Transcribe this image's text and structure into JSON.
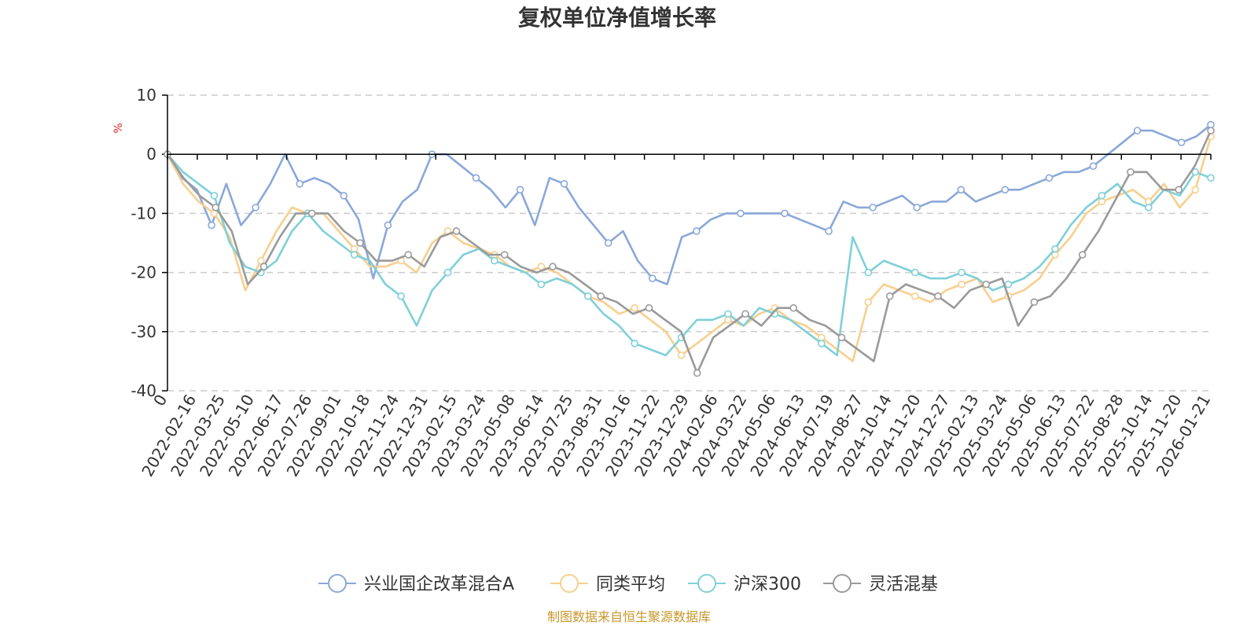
{
  "chart_data": {
    "type": "line",
    "title": "复权单位净值增长率",
    "ylabel": "%",
    "xlabel": "",
    "ylim": [
      -40,
      10
    ],
    "yticks": [
      10,
      0,
      -10,
      -20,
      -30,
      -40
    ],
    "grid": true,
    "legend_position": "bottom-center",
    "source_note": "制图数据来自恒生聚源数据库",
    "x_tick_labels": [
      "0",
      "2022-02-16",
      "2022-03-25",
      "2022-05-10",
      "2022-06-17",
      "2022-07-26",
      "2022-09-01",
      "2022-10-18",
      "2022-11-24",
      "2022-12-31",
      "2023-02-15",
      "2023-03-24",
      "2023-05-08",
      "2023-06-14",
      "2023-07-25",
      "2023-08-31",
      "2023-10-16",
      "2023-11-22",
      "2023-12-29",
      "2024-02-06",
      "2024-03-22",
      "2024-05-06",
      "2024-06-13",
      "2024-07-19",
      "2024-08-27",
      "2024-10-14",
      "2024-11-20",
      "2024-12-27",
      "2025-02-13",
      "2025-03-24",
      "2025-05-06",
      "2025-06-13",
      "2025-07-22",
      "2025-08-28",
      "2025-10-14",
      "2025-11-20",
      "2026-01-21"
    ],
    "series": [
      {
        "name": "兴业国企改革混合A",
        "color": "#8aa8d8",
        "values": [
          0,
          -4,
          -6,
          -12,
          -5,
          -12,
          -9,
          -5,
          0,
          -5,
          -4,
          -5,
          -7,
          -11,
          -21,
          -12,
          -8,
          -6,
          0,
          0,
          -2,
          -4,
          -6,
          -9,
          -6,
          -12,
          -4,
          -5,
          -9,
          -12,
          -15,
          -13,
          -18,
          -21,
          -22,
          -14,
          -13,
          -11,
          -10,
          -10,
          -10,
          -10,
          -10,
          -11,
          -12,
          -13,
          -8,
          -9,
          -9,
          -8,
          -7,
          -9,
          -8,
          -8,
          -6,
          -8,
          -7,
          -6,
          -6,
          -5,
          -4,
          -3,
          -3,
          -2,
          0,
          2,
          4,
          4,
          3,
          2,
          3,
          5
        ]
      },
      {
        "name": "同类平均",
        "color": "#f7cf8e",
        "values": [
          0,
          -5,
          -8,
          -10,
          -14,
          -23,
          -18,
          -13,
          -9,
          -10,
          -10,
          -13,
          -16,
          -19,
          -19,
          -18,
          -20,
          -15,
          -13,
          -15,
          -16,
          -17,
          -19,
          -20,
          -19,
          -20,
          -22,
          -24,
          -25,
          -27,
          -26,
          -28,
          -30,
          -34,
          -32,
          -30,
          -28,
          -29,
          -27,
          -26,
          -28,
          -29,
          -31,
          -33,
          -35,
          -25,
          -22,
          -23,
          -24,
          -25,
          -23,
          -22,
          -21,
          -25,
          -24,
          -23,
          -21,
          -17,
          -14,
          -10,
          -8,
          -7,
          -6,
          -8,
          -5,
          -9,
          -6,
          3
        ]
      },
      {
        "name": "沪深300",
        "color": "#7fd0d8",
        "values": [
          0,
          -3,
          -5,
          -7,
          -15,
          -19,
          -20,
          -18,
          -13,
          -10,
          -13,
          -15,
          -17,
          -18,
          -22,
          -24,
          -29,
          -23,
          -20,
          -17,
          -16,
          -18,
          -19,
          -20,
          -22,
          -21,
          -22,
          -24,
          -27,
          -29,
          -32,
          -33,
          -34,
          -31,
          -28,
          -28,
          -27,
          -29,
          -26,
          -27,
          -28,
          -30,
          -32,
          -34,
          -14,
          -20,
          -18,
          -19,
          -20,
          -21,
          -21,
          -20,
          -21,
          -23,
          -22,
          -21,
          -19,
          -16,
          -12,
          -9,
          -7,
          -5,
          -8,
          -9,
          -6,
          -7,
          -3,
          -4
        ]
      },
      {
        "name": "灵活混基",
        "color": "#9a9a9a",
        "values": [
          0,
          -4,
          -7,
          -9,
          -13,
          -22,
          -19,
          -14,
          -10,
          -10,
          -10,
          -13,
          -15,
          -18,
          -18,
          -17,
          -19,
          -14,
          -13,
          -15,
          -17,
          -17,
          -19,
          -20,
          -19,
          -20,
          -22,
          -24,
          -25,
          -27,
          -26,
          -28,
          -30,
          -37,
          -31,
          -29,
          -27,
          -29,
          -26,
          -26,
          -28,
          -29,
          -31,
          -33,
          -35,
          -24,
          -22,
          -23,
          -24,
          -26,
          -23,
          -22,
          -21,
          -29,
          -25,
          -24,
          -21,
          -17,
          -13,
          -8,
          -3,
          -3,
          -6,
          -6,
          -2,
          4
        ]
      }
    ]
  }
}
